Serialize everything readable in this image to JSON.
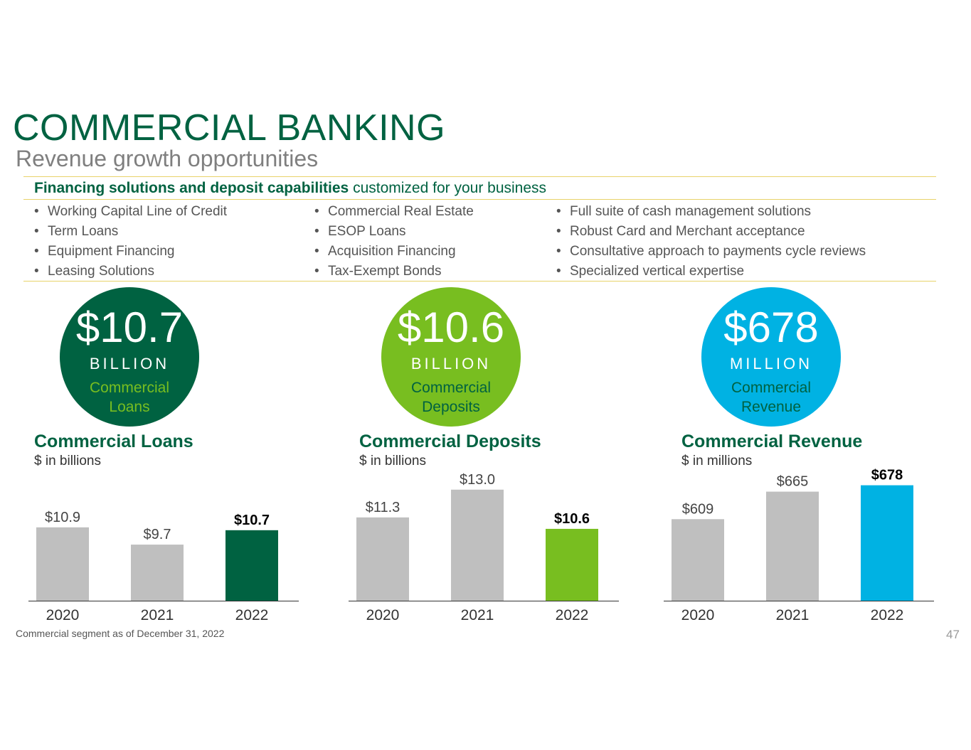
{
  "header": {
    "title": "COMMERCIAL BANKING",
    "subtitle": "Revenue growth opportunities"
  },
  "tagline": {
    "bold": "Financing solutions and deposit capabilities",
    "rest": " customized for your business"
  },
  "bullets": {
    "col1": [
      "Working Capital Line of Credit",
      "Term Loans",
      "Equipment Financing",
      "Leasing Solutions"
    ],
    "col2": [
      "Commercial Real Estate",
      "ESOP Loans",
      "Acquisition Financing",
      "Tax-Exempt Bonds"
    ],
    "col3": [
      "Full suite of cash management solutions",
      "Robust Card and Merchant acceptance",
      "Consultative approach to payments cycle reviews",
      "Specialized vertical expertise"
    ]
  },
  "highlights": [
    {
      "value": "$10.7",
      "unit": "BILLION",
      "label1": "Commercial",
      "label2": "Loans",
      "bg": "#006241",
      "label_color": "#78be20"
    },
    {
      "value": "$10.6",
      "unit": "BILLION",
      "label1": "Commercial",
      "label2": "Deposits",
      "bg": "#78be20",
      "label_color": "#006241"
    },
    {
      "value": "$678",
      "unit": "MILLION",
      "label1": "Commercial",
      "label2": "Revenue",
      "bg": "#00b2e3",
      "label_color": "#006241"
    }
  ],
  "chart_data": [
    {
      "type": "bar",
      "title": "Commercial Loans",
      "subtitle": "$ in billions",
      "categories": [
        "2020",
        "2021",
        "2022"
      ],
      "values": [
        10.9,
        9.7,
        10.7
      ],
      "labels": [
        "$10.9",
        "$9.7",
        "$10.7"
      ],
      "ylim": [
        5.8,
        14.2
      ],
      "colors": [
        "#bfbfbf",
        "#bfbfbf",
        "#006241"
      ],
      "highlight_last": true
    },
    {
      "type": "bar",
      "title": "Commercial Deposits",
      "subtitle": "$ in billions",
      "categories": [
        "2020",
        "2021",
        "2022"
      ],
      "values": [
        11.3,
        13.0,
        10.6
      ],
      "labels": [
        "$11.3",
        "$13.0",
        "$10.6"
      ],
      "ylim": [
        6.2,
        13.6
      ],
      "colors": [
        "#bfbfbf",
        "#bfbfbf",
        "#78be20"
      ],
      "highlight_last": true
    },
    {
      "type": "bar",
      "title": "Commercial Revenue",
      "subtitle": "$ in millions",
      "categories": [
        "2020",
        "2021",
        "2022"
      ],
      "values": [
        609,
        665,
        678
      ],
      "labels": [
        "$609",
        "$665",
        "$678"
      ],
      "ylim": [
        443,
        689
      ],
      "colors": [
        "#bfbfbf",
        "#bfbfbf",
        "#00b2e3"
      ],
      "highlight_last": true
    }
  ],
  "footer": {
    "note": "Commercial segment as of December 31, 2022",
    "page": "47"
  }
}
